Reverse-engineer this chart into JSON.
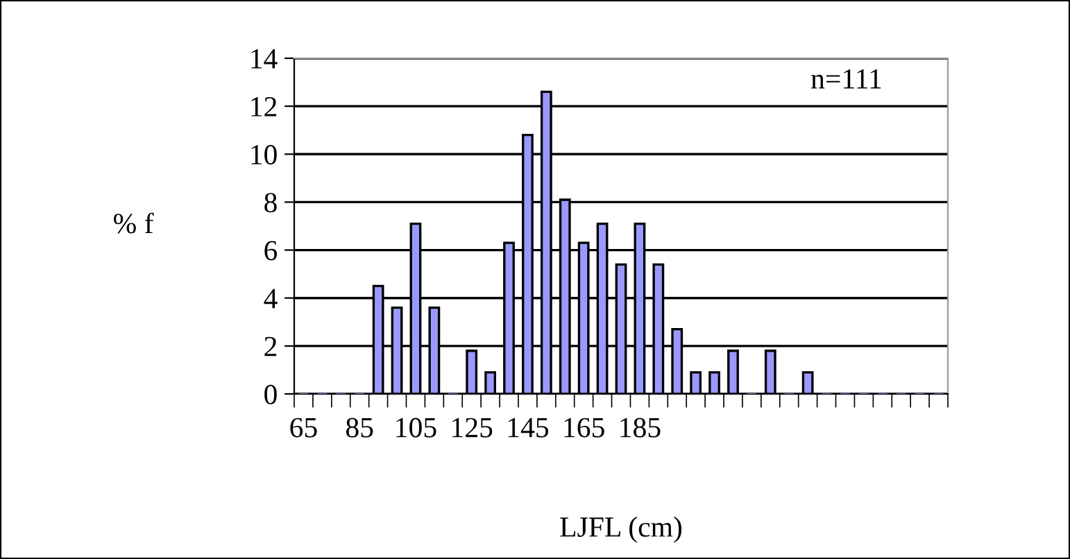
{
  "chart_data": {
    "type": "bar",
    "xlabel": "LJFL (cm)",
    "ylabel": "% f",
    "categories": [
      "65",
      null,
      null,
      "85",
      null,
      null,
      "105",
      null,
      null,
      "125",
      null,
      null,
      "145",
      null,
      null,
      "165",
      null,
      null,
      "185",
      null,
      null,
      null,
      null,
      null,
      null,
      null,
      null,
      null,
      null,
      null,
      null,
      null,
      null,
      null,
      null
    ],
    "values": [
      0,
      0,
      0,
      0,
      4.5,
      3.6,
      7.1,
      3.6,
      0,
      1.8,
      0.9,
      6.3,
      10.8,
      12.6,
      8.1,
      6.3,
      7.1,
      5.4,
      7.1,
      5.4,
      2.7,
      0.9,
      0.9,
      1.8,
      0,
      1.8,
      0,
      0.9,
      0,
      0,
      0,
      0,
      0,
      0,
      0
    ],
    "color": "#9999ff",
    "ylim": [
      0,
      14
    ],
    "yticks": [
      0,
      2,
      4,
      6,
      8,
      10,
      12,
      14
    ],
    "grid": "y",
    "annotations": [
      "n=111"
    ]
  }
}
